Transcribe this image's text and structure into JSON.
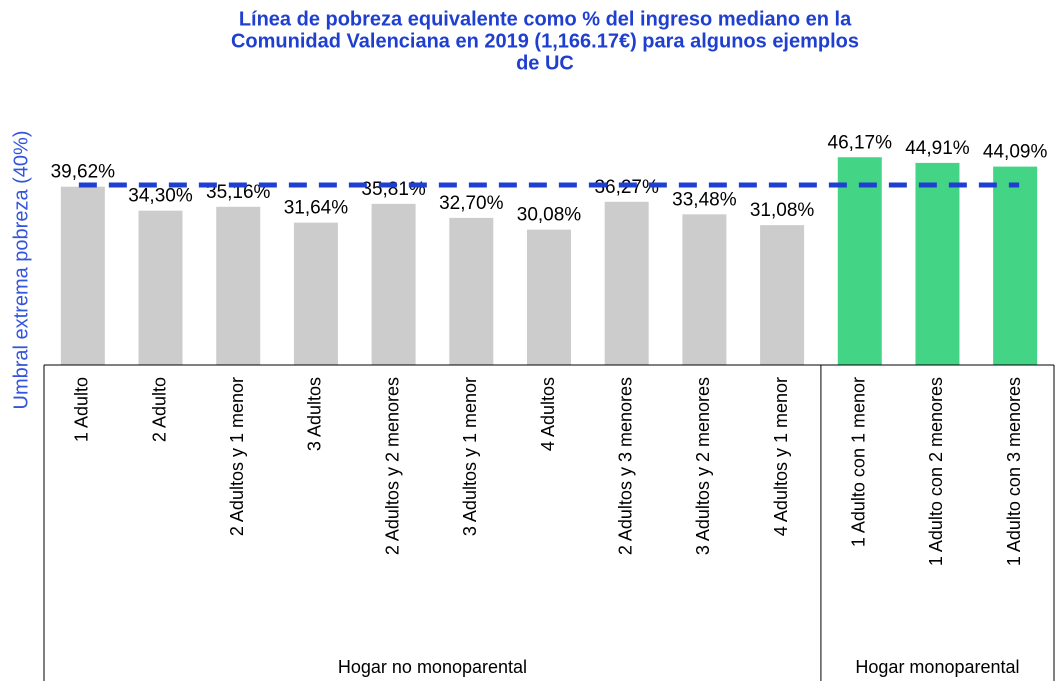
{
  "chart_data": {
    "type": "bar",
    "title": [
      "Línea de pobreza equivalente como % del ingreso mediano en la",
      "Comunidad Valenciana en 2019 (1,166.17€) para algunos ejemplos",
      "de UC"
    ],
    "y_label": "Umbral extrema pobreza (40%)",
    "categories": [
      "1 Adulto",
      "2 Adulto",
      "2 Adultos y 1 menor",
      "3 Adultos",
      "2 Adultos y 2 menores",
      "3 Adultos y 1 menor",
      "4 Adultos",
      "2 Adultos y 3 menores",
      "3 Adultos y 2 menores",
      "4 Adultos y 1 menor",
      "1 Adulto con 1 menor",
      "1 Adulto con 2 menores",
      "1 Adulto con 3 menores"
    ],
    "values": [
      39.62,
      34.3,
      35.16,
      31.64,
      35.81,
      32.7,
      30.08,
      36.27,
      33.48,
      31.08,
      46.17,
      44.91,
      44.09
    ],
    "value_labels": [
      "39,62%",
      "34,30%",
      "35,16%",
      "31,64%",
      "35,81%",
      "32,70%",
      "30,08%",
      "36,27%",
      "33,48%",
      "31,08%",
      "46,17%",
      "44,91%",
      "44,09%"
    ],
    "colors": [
      "#cccccc",
      "#cccccc",
      "#cccccc",
      "#cccccc",
      "#cccccc",
      "#cccccc",
      "#cccccc",
      "#cccccc",
      "#cccccc",
      "#cccccc",
      "#44d486",
      "#44d486",
      "#44d486"
    ],
    "threshold": {
      "value": 40,
      "color": "#1f3fd0"
    },
    "groups": [
      {
        "name": "Hogar no monoparental",
        "size": 10
      },
      {
        "name": "Hogar monoparental",
        "size": 3
      }
    ],
    "ylim": [
      0,
      50
    ]
  }
}
